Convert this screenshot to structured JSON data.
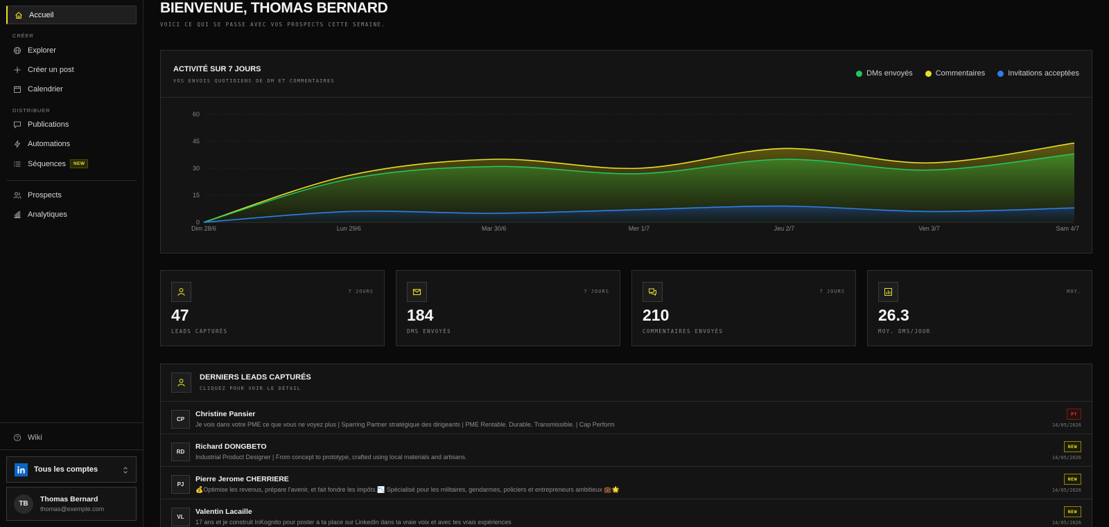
{
  "sidebar": {
    "home": "Accueil",
    "section_create": "CRÉER",
    "explore": "Explorer",
    "create_post": "Créer un post",
    "calendar": "Calendrier",
    "section_distribute": "DISTRIBUER",
    "publications": "Publications",
    "automations": "Automations",
    "sequences": "Séquences",
    "sequences_badge": "NEW",
    "prospects": "Prospects",
    "analytics": "Analytiques",
    "wiki": "Wiki",
    "accounts_selector": "Tous les comptes",
    "user": {
      "initials": "TB",
      "name": "Thomas Bernard",
      "email": "thomas@exemple.com"
    }
  },
  "header": {
    "title": "BIENVENUE, THOMAS BERNARD",
    "subtitle": "VOICI CE QUI SE PASSE AVEC VOS PROSPECTS CETTE SEMAINE."
  },
  "activity": {
    "title": "ACTIVITÉ SUR 7 JOURS",
    "subtitle": "VOS ENVOIS QUOTIDIENS DE DM ET COMMENTAIRES",
    "legend": [
      {
        "label": "DMs envoyés",
        "color": "#22c55e"
      },
      {
        "label": "Commentaires",
        "color": "#e6e02a"
      },
      {
        "label": "Invitations acceptées",
        "color": "#2f7fe8"
      }
    ]
  },
  "chart_data": {
    "type": "area",
    "title": "ACTIVITÉ SUR 7 JOURS",
    "x": [
      "Dim 28/6",
      "Lun 29/6",
      "Mar 30/6",
      "Mer 1/7",
      "Jeu 2/7",
      "Ven 3/7",
      "Sam 4/7"
    ],
    "y_ticks": [
      0,
      15,
      30,
      45,
      60
    ],
    "ylim": [
      0,
      60
    ],
    "grid": true,
    "legend_position": "top-right",
    "series": [
      {
        "name": "DMs envoyés",
        "color": "#22c55e",
        "values": [
          0,
          24,
          31,
          27,
          35,
          29,
          38
        ]
      },
      {
        "name": "Commentaires",
        "color": "#e6e02a",
        "values": [
          0,
          26,
          35,
          30,
          41,
          33,
          44
        ]
      },
      {
        "name": "Invitations acceptées",
        "color": "#2f7fe8",
        "values": [
          0,
          6,
          5,
          7,
          9,
          6,
          8
        ]
      }
    ]
  },
  "stats": [
    {
      "tag": "7 JOURS",
      "value": "47",
      "label": "LEADS CAPTURÉS",
      "icon": "user-icon"
    },
    {
      "tag": "7 JOURS",
      "value": "184",
      "label": "DMS ENVOYÉS",
      "icon": "mail-icon"
    },
    {
      "tag": "7 JOURS",
      "value": "210",
      "label": "COMMENTAIRES ENVOYÉS",
      "icon": "comments-icon"
    },
    {
      "tag": "MOY.",
      "value": "26.3",
      "label": "MOY. DMS/JOUR",
      "icon": "bar-chart-icon"
    }
  ],
  "leads": {
    "title": "DERNIERS LEADS CAPTURÉS",
    "subtitle": "CLIQUEZ POUR VOIR LE DÉTAIL",
    "items": [
      {
        "initials": "CP",
        "name": "Christine Pansier",
        "desc": "Je vois dans votre PME ce que vous ne voyez plus | Sparring Partner stratégique des dirigeants | PME Rentable. Durable. Transmissible. | Cap Perform",
        "badge": "PT",
        "date": "14/05/2026"
      },
      {
        "initials": "RD",
        "name": "Richard DONGBETO",
        "desc": "Industrial Product Designer | From concept to prototype, crafted using local materials and artisans.",
        "badge": "NEW",
        "date": "14/05/2026"
      },
      {
        "initials": "PJ",
        "name": "Pierre Jerome CHERRIERE",
        "desc": "💰Optimise les revenus, prépare l'avenir, et fait fondre les impôts.📉 Spécialisé pour les militaires, gendarmes, policiers et entrepreneurs ambitieux 💼🌟",
        "badge": "NEW",
        "date": "14/05/2026"
      },
      {
        "initials": "VL",
        "name": "Valentin Lacaille",
        "desc": "17 ans et je construit InKognito pour poster à ta place sur LinkedIn dans ta vraie voix et avec tes vrais expériences",
        "badge": "NEW",
        "date": "14/05/2026"
      }
    ]
  }
}
